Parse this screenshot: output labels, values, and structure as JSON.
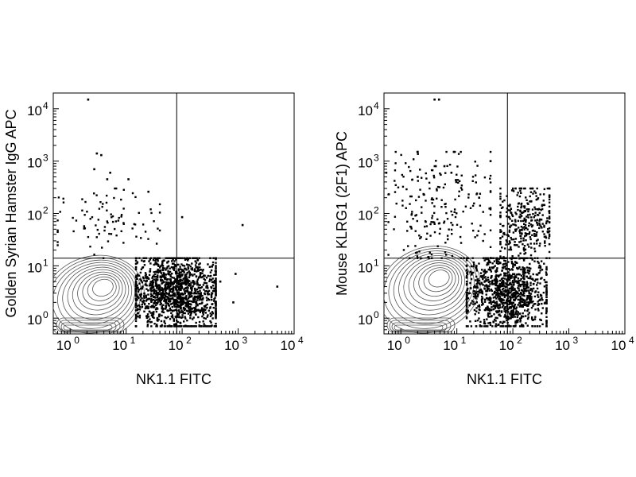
{
  "chart_data": [
    {
      "type": "scatter",
      "xlabel": "NK1.1 FITC",
      "ylabel": "Golden Syrian Hamster IgG APC",
      "x_scale": "log",
      "y_scale": "log",
      "xlim": [
        0.5,
        10000
      ],
      "ylim": [
        0.5,
        20000
      ],
      "x_tick_labels": [
        {
          "value": 1,
          "base": "10",
          "exp": "0"
        },
        {
          "value": 10,
          "base": "10",
          "exp": "1"
        },
        {
          "value": 100,
          "base": "10",
          "exp": "2"
        },
        {
          "value": 1000,
          "base": "10",
          "exp": "3"
        },
        {
          "value": 10000,
          "base": "10",
          "exp": "4"
        }
      ],
      "y_tick_labels": [
        {
          "value": 1,
          "base": "10",
          "exp": "0"
        },
        {
          "value": 10,
          "base": "10",
          "exp": "1"
        },
        {
          "value": 100,
          "base": "10",
          "exp": "2"
        },
        {
          "value": 1000,
          "base": "10",
          "exp": "3"
        },
        {
          "value": 10000,
          "base": "10",
          "exp": "4"
        }
      ],
      "quadrant_gates": {
        "x": 80,
        "y": 14
      },
      "contour_center": {
        "x": 4,
        "y": 4
      },
      "populations": [
        {
          "label": "NK1.1- negative",
          "x_range": [
            0.6,
            12
          ],
          "y_range": [
            0.6,
            12
          ],
          "shown_as": "contours"
        },
        {
          "label": "NK1.1+ negative",
          "x_range": [
            15,
            400
          ],
          "y_range": [
            0.7,
            14
          ],
          "approx_count": 1400,
          "shown_as": "dots"
        },
        {
          "label": "NK1.1- positive",
          "x_range": [
            0.6,
            40
          ],
          "y_range": [
            14,
            300
          ],
          "approx_count": 90,
          "shown_as": "dots"
        }
      ],
      "outliers": [
        [
          2.1,
          15000
        ],
        [
          3.0,
          1400
        ],
        [
          3.6,
          1300
        ],
        [
          2.7,
          700
        ],
        [
          5.2,
          600
        ],
        [
          4.6,
          450
        ],
        [
          11,
          450
        ],
        [
          25,
          260
        ],
        [
          100,
          85
        ],
        [
          1200,
          60
        ],
        [
          5000,
          4
        ],
        [
          480,
          5
        ],
        [
          820,
          2
        ],
        [
          900,
          7
        ]
      ],
      "grid": false,
      "legend": "none"
    },
    {
      "type": "scatter",
      "xlabel": "NK1.1 FITC",
      "ylabel": "Mouse KLRG1 (2F1) APC",
      "x_scale": "log",
      "y_scale": "log",
      "xlim": [
        0.5,
        10000
      ],
      "ylim": [
        0.5,
        20000
      ],
      "x_tick_labels": [
        {
          "value": 1,
          "base": "10",
          "exp": "0"
        },
        {
          "value": 10,
          "base": "10",
          "exp": "1"
        },
        {
          "value": 100,
          "base": "10",
          "exp": "2"
        },
        {
          "value": 1000,
          "base": "10",
          "exp": "3"
        },
        {
          "value": 10000,
          "base": "10",
          "exp": "4"
        }
      ],
      "y_tick_labels": [
        {
          "value": 1,
          "base": "10",
          "exp": "0"
        },
        {
          "value": 10,
          "base": "10",
          "exp": "1"
        },
        {
          "value": 100,
          "base": "10",
          "exp": "2"
        },
        {
          "value": 1000,
          "base": "10",
          "exp": "3"
        },
        {
          "value": 10000,
          "base": "10",
          "exp": "4"
        }
      ],
      "quadrant_gates": {
        "x": 80,
        "y": 14
      },
      "contour_center": {
        "x": 5,
        "y": 6
      },
      "populations": [
        {
          "label": "NK1.1- negative",
          "x_range": [
            0.6,
            12
          ],
          "y_range": [
            0.6,
            12
          ],
          "shown_as": "contours"
        },
        {
          "label": "NK1.1+ negative",
          "x_range": [
            15,
            400
          ],
          "y_range": [
            0.7,
            14
          ],
          "approx_count": 1100,
          "shown_as": "dots"
        },
        {
          "label": "NK1.1+ positive",
          "x_range": [
            60,
            450
          ],
          "y_range": [
            14,
            300
          ],
          "approx_count": 350,
          "shown_as": "dots"
        },
        {
          "label": "NK1.1- positive",
          "x_range": [
            0.6,
            40
          ],
          "y_range": [
            14,
            1500
          ],
          "approx_count": 220,
          "shown_as": "dots"
        }
      ],
      "outliers": [
        [
          4.0,
          15000
        ],
        [
          4.8,
          15000
        ],
        [
          2.0,
          1500
        ],
        [
          40,
          1000
        ],
        [
          0.55,
          600
        ],
        [
          2.0,
          500
        ],
        [
          4.2,
          800
        ],
        [
          6.0,
          800
        ],
        [
          8.0,
          600
        ],
        [
          25,
          200
        ]
      ],
      "grid": false,
      "legend": "none"
    }
  ]
}
